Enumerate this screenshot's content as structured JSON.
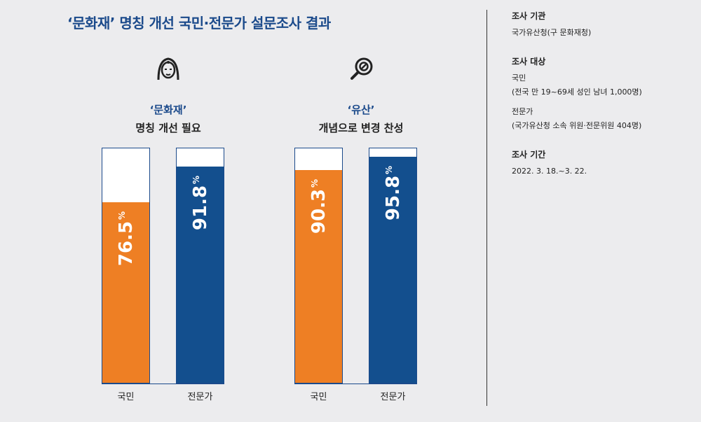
{
  "title": "‘문화재’ 명칭 개선 국민·전문가 설문조사 결과",
  "panels": [
    {
      "subtitle_1": "‘문화재’",
      "subtitle_2": "명칭 개선 필요",
      "icon": "statue-head-icon"
    },
    {
      "subtitle_1": "‘유산’",
      "subtitle_2": "개념으로 변경 찬성",
      "icon": "magnifier-icon"
    }
  ],
  "percent_sign": "%",
  "info": {
    "org_heading": "조사 기관",
    "org": "국가유산청(구 문화재청)",
    "target_heading": "조사 대상",
    "target_1": "국민",
    "target_1_detail": "(전국 만 19~69세 성인 남녀 1,000명)",
    "target_2": "전문가",
    "target_2_detail": "(국가유산청 소속 위원·전문위원 404명)",
    "period_heading": "조사 기간",
    "period": "2022. 3. 18.~3. 22."
  },
  "colors": {
    "public": "#ee7f24",
    "expert": "#134f8e",
    "title": "#1b4a8b"
  },
  "chart_data": [
    {
      "type": "bar",
      "title": "‘문화재’ 명칭 개선 필요",
      "categories": [
        "국민",
        "전문가"
      ],
      "values": [
        76.5,
        91.8
      ],
      "value_labels": [
        "76.5",
        "91.8"
      ],
      "ylim": [
        0,
        100
      ]
    },
    {
      "type": "bar",
      "title": "‘유산’ 개념으로 변경 찬성",
      "categories": [
        "국민",
        "전문가"
      ],
      "values": [
        90.3,
        95.8
      ],
      "value_labels": [
        "90.3",
        "95.8"
      ],
      "ylim": [
        0,
        100
      ]
    }
  ]
}
